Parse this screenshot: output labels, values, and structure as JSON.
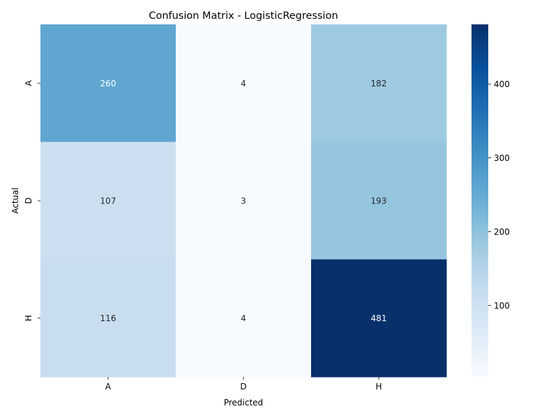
{
  "chart_data": {
    "type": "heatmap",
    "title": "Confusion Matrix - LogisticRegression",
    "xlabel": "Predicted",
    "ylabel": "Actual",
    "x_categories": [
      "A",
      "D",
      "H"
    ],
    "y_categories": [
      "A",
      "D",
      "H"
    ],
    "values": [
      [
        260,
        4,
        182
      ],
      [
        107,
        3,
        193
      ],
      [
        116,
        4,
        481
      ]
    ],
    "colormap": "Blues",
    "colorbar": {
      "vmin": 3,
      "vmax": 481,
      "ticks": [
        100,
        200,
        300,
        400
      ]
    },
    "annotation_colors": {
      "dark": "#262626",
      "light": "#ffffff"
    }
  }
}
